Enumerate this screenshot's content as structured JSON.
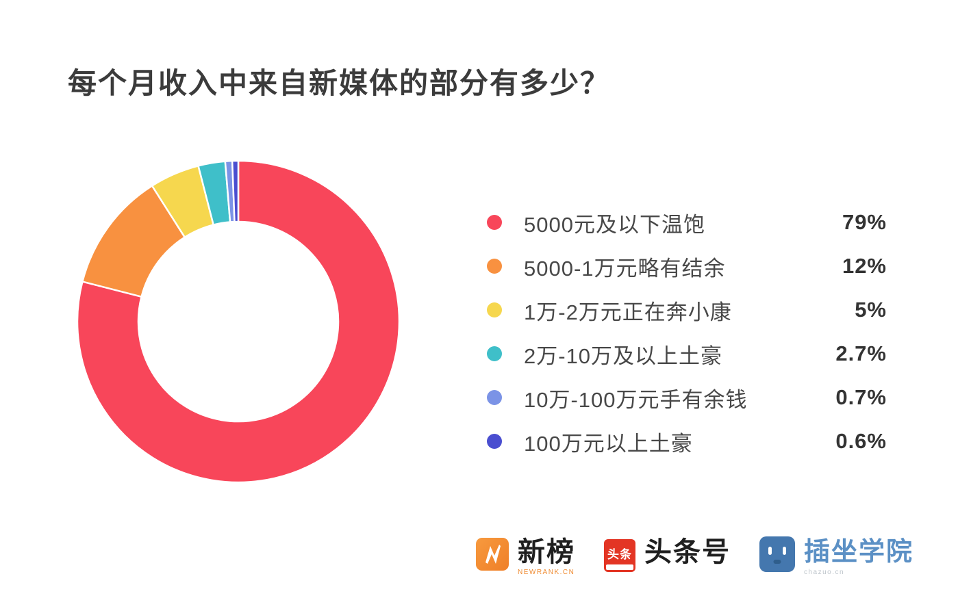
{
  "title": "每个月收入中来自新媒体的部分有多少？",
  "chart_data": {
    "type": "pie",
    "subtype": "donut",
    "title": "每个月收入中来自新媒体的部分有多少？",
    "start_angle_deg": 0,
    "direction": "clockwise",
    "legend_position": "right",
    "outer_radius_px": 235,
    "inner_radius_px": 146,
    "slices": [
      {
        "label": "5000元及以下温饱",
        "value": 79,
        "display": "79%",
        "color": "#F8465A"
      },
      {
        "label": "5000-1万元略有结余",
        "value": 12,
        "display": "12%",
        "color": "#F89140"
      },
      {
        "label": "1万-2万元正在奔小康",
        "value": 5,
        "display": "5%",
        "color": "#F6D74E"
      },
      {
        "label": "2万-10万及以上土豪",
        "value": 2.7,
        "display": "2.7%",
        "color": "#3FBFC9"
      },
      {
        "label": "10万-100万元手有余钱",
        "value": 0.7,
        "display": "0.7%",
        "color": "#7B93E6"
      },
      {
        "label": "100万元以上土豪",
        "value": 0.6,
        "display": "0.6%",
        "color": "#4A4ED0"
      }
    ]
  },
  "footer": {
    "newrank": {
      "name": "新榜",
      "sub": "NEWRANK.CN"
    },
    "toutiao": {
      "name": "头条号",
      "logo_text": "头条"
    },
    "chazuo": {
      "name": "插坐学院",
      "sub": "chazuo.cn"
    }
  }
}
